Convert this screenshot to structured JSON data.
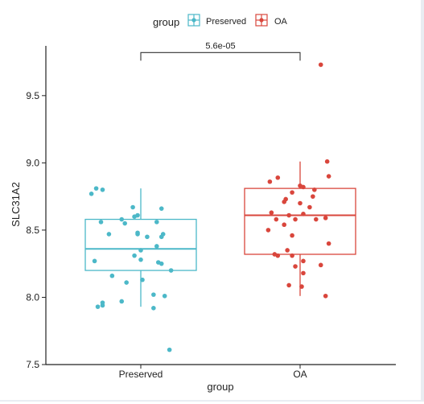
{
  "chart_data": {
    "type": "box",
    "xlabel": "group",
    "ylabel": "SLC31A2",
    "ylim": [
      7.5,
      9.87
    ],
    "yticks": [
      7.5,
      8.0,
      8.5,
      9.0,
      9.5
    ],
    "ytick_labels": [
      "7.5",
      "8.0",
      "8.5",
      "9.0",
      "9.5"
    ],
    "legend": {
      "title": "group",
      "position": "top",
      "entries": [
        "Preserved",
        "OA"
      ]
    },
    "annotation": {
      "text": "5.6e-05",
      "between": [
        "Preserved",
        "OA"
      ],
      "y": 9.82
    },
    "categories": [
      "Preserved",
      "OA"
    ],
    "series": [
      {
        "name": "Preserved",
        "color": "#4cb8c8",
        "box": {
          "whisker_low": 7.93,
          "q1": 8.2,
          "median": 8.36,
          "q3": 8.58,
          "whisker_high": 8.81
        },
        "points": [
          {
            "x": -0.24,
            "y": 8.8
          },
          {
            "x": -0.28,
            "y": 8.81
          },
          {
            "x": -0.31,
            "y": 8.77
          },
          {
            "x": -0.05,
            "y": 8.67
          },
          {
            "x": 0.13,
            "y": 8.66
          },
          {
            "x": -0.02,
            "y": 8.61
          },
          {
            "x": -0.04,
            "y": 8.6
          },
          {
            "x": -0.12,
            "y": 8.58
          },
          {
            "x": 0.1,
            "y": 8.56
          },
          {
            "x": -0.25,
            "y": 8.56
          },
          {
            "x": -0.1,
            "y": 8.55
          },
          {
            "x": -0.02,
            "y": 8.48
          },
          {
            "x": -0.02,
            "y": 8.47
          },
          {
            "x": 0.14,
            "y": 8.47
          },
          {
            "x": -0.2,
            "y": 8.47
          },
          {
            "x": 0.13,
            "y": 8.45
          },
          {
            "x": 0.04,
            "y": 8.45
          },
          {
            "x": 0.1,
            "y": 8.38
          },
          {
            "x": 0.0,
            "y": 8.35
          },
          {
            "x": -0.04,
            "y": 8.31
          },
          {
            "x": 0.0,
            "y": 8.28
          },
          {
            "x": -0.29,
            "y": 8.27
          },
          {
            "x": 0.11,
            "y": 8.26
          },
          {
            "x": 0.13,
            "y": 8.25
          },
          {
            "x": 0.19,
            "y": 8.2
          },
          {
            "x": -0.18,
            "y": 8.16
          },
          {
            "x": 0.01,
            "y": 8.13
          },
          {
            "x": -0.09,
            "y": 8.11
          },
          {
            "x": 0.08,
            "y": 8.02
          },
          {
            "x": 0.15,
            "y": 8.01
          },
          {
            "x": -0.12,
            "y": 7.97
          },
          {
            "x": -0.24,
            "y": 7.96
          },
          {
            "x": -0.24,
            "y": 7.94
          },
          {
            "x": -0.27,
            "y": 7.93
          },
          {
            "x": 0.08,
            "y": 7.92
          },
          {
            "x": 0.18,
            "y": 7.61
          }
        ]
      },
      {
        "name": "OA",
        "color": "#d9463c",
        "box": {
          "whisker_low": 8.01,
          "q1": 8.32,
          "median": 8.61,
          "q3": 8.81,
          "whisker_high": 9.01
        },
        "points": [
          {
            "x": 0.13,
            "y": 9.73
          },
          {
            "x": 0.17,
            "y": 9.01
          },
          {
            "x": 0.18,
            "y": 8.9
          },
          {
            "x": -0.14,
            "y": 8.89
          },
          {
            "x": -0.19,
            "y": 8.86
          },
          {
            "x": 0.0,
            "y": 8.83
          },
          {
            "x": 0.02,
            "y": 8.82
          },
          {
            "x": 0.09,
            "y": 8.8
          },
          {
            "x": -0.05,
            "y": 8.78
          },
          {
            "x": 0.08,
            "y": 8.75
          },
          {
            "x": -0.09,
            "y": 8.73
          },
          {
            "x": -0.1,
            "y": 8.71
          },
          {
            "x": 0.0,
            "y": 8.7
          },
          {
            "x": 0.06,
            "y": 8.67
          },
          {
            "x": -0.18,
            "y": 8.63
          },
          {
            "x": 0.02,
            "y": 8.62
          },
          {
            "x": -0.07,
            "y": 8.61
          },
          {
            "x": 0.16,
            "y": 8.59
          },
          {
            "x": -0.03,
            "y": 8.58
          },
          {
            "x": -0.15,
            "y": 8.58
          },
          {
            "x": 0.1,
            "y": 8.58
          },
          {
            "x": -0.1,
            "y": 8.54
          },
          {
            "x": -0.2,
            "y": 8.5
          },
          {
            "x": -0.05,
            "y": 8.46
          },
          {
            "x": 0.18,
            "y": 8.4
          },
          {
            "x": -0.08,
            "y": 8.35
          },
          {
            "x": -0.16,
            "y": 8.32
          },
          {
            "x": -0.14,
            "y": 8.31
          },
          {
            "x": -0.05,
            "y": 8.31
          },
          {
            "x": 0.02,
            "y": 8.27
          },
          {
            "x": 0.13,
            "y": 8.24
          },
          {
            "x": -0.03,
            "y": 8.23
          },
          {
            "x": 0.02,
            "y": 8.18
          },
          {
            "x": -0.07,
            "y": 8.09
          },
          {
            "x": 0.01,
            "y": 8.08
          },
          {
            "x": 0.16,
            "y": 8.01
          }
        ]
      }
    ]
  }
}
